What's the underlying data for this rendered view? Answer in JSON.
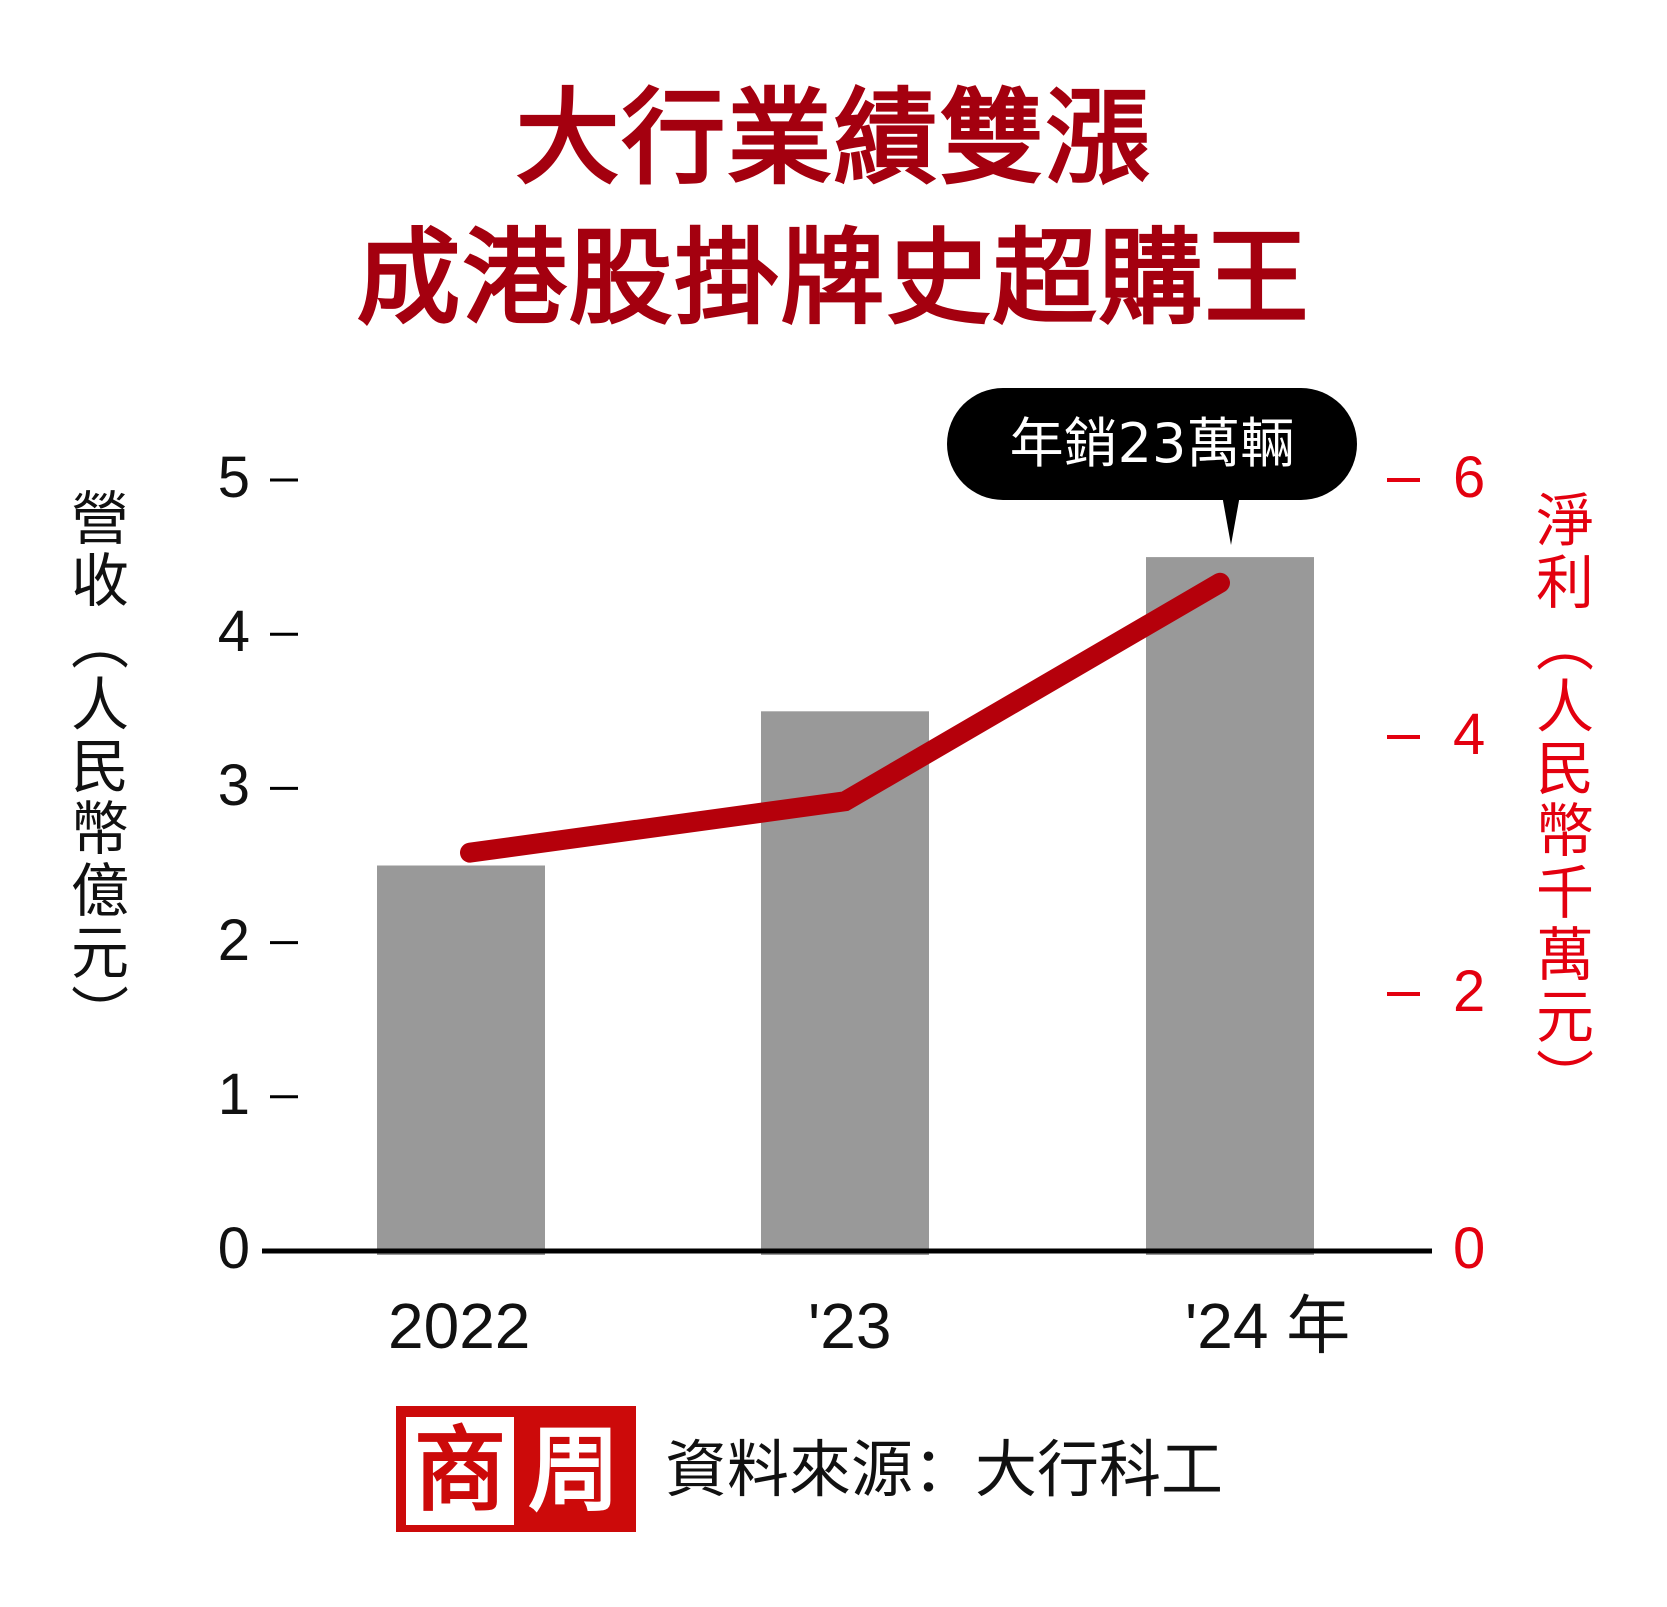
{
  "title": {
    "line1": "大行業績雙漲",
    "line2": "成港股掛牌史超購王"
  },
  "axes": {
    "left_label_chars": [
      "營",
      "收",
      "︵",
      "人",
      "民",
      "幣",
      "億",
      "元",
      "︶"
    ],
    "left_label": "營收（人民幣億元）",
    "right_label_chars": [
      "淨",
      "利",
      "︵",
      "人",
      "民",
      "幣",
      "千",
      "萬",
      "元",
      "︶"
    ],
    "right_label": "淨利（人民幣千萬元）",
    "left_ticks": [
      "5",
      "4",
      "3",
      "2",
      "1",
      "0"
    ],
    "right_ticks": [
      "6",
      "4",
      "2",
      "0"
    ],
    "x_ticks": [
      "2022",
      "'23",
      "'24 年"
    ]
  },
  "callout": {
    "text": "年銷23萬輛"
  },
  "footer": {
    "logo_char1": "商",
    "logo_char2": "周",
    "source": "資料來源：大行科工"
  },
  "colors": {
    "title": "#a4000f",
    "bar": "#999999",
    "line": "#b5000b",
    "right_axis": "#e3000f",
    "logo_bg": "#cc0a0a"
  },
  "chart_data": {
    "type": "bar",
    "title": "大行業績雙漲 成港股掛牌史超購王",
    "categories": [
      "2022",
      "'23",
      "'24"
    ],
    "xlabel": "年",
    "series": [
      {
        "name": "營收（人民幣億元）",
        "type": "bar",
        "axis": "left",
        "values": [
          2.5,
          3.5,
          4.5
        ]
      },
      {
        "name": "淨利（人民幣千萬元）",
        "type": "line",
        "axis": "right",
        "values": [
          3.1,
          3.5,
          5.2
        ]
      }
    ],
    "ylabel": "營收（人民幣億元）",
    "ylim": [
      0,
      5
    ],
    "y2label": "淨利（人民幣千萬元）",
    "y2lim": [
      0,
      6
    ],
    "annotations": [
      {
        "text": "年銷23萬輛",
        "target": "'24"
      }
    ],
    "grid": false,
    "source": "資料來源：大行科工"
  }
}
